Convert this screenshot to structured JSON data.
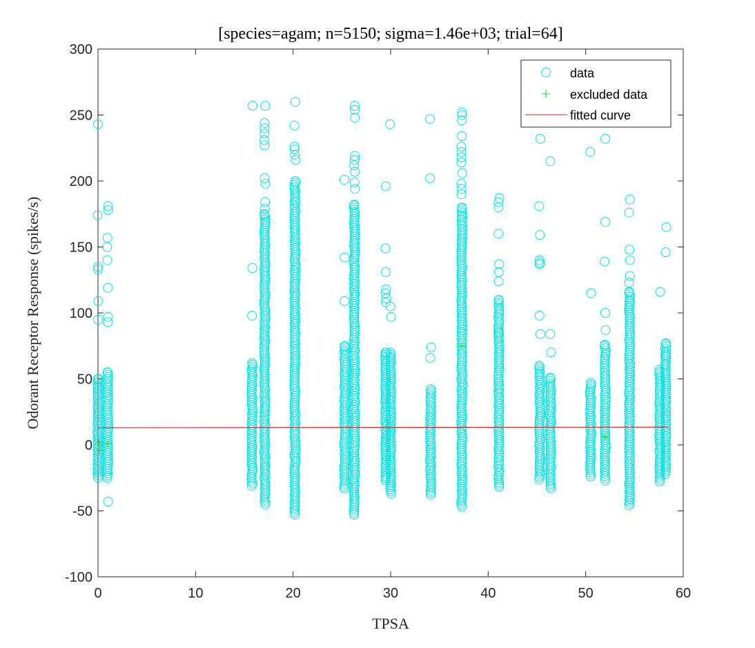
{
  "chart_data": {
    "type": "scatter",
    "title": "[species=agam; n=5150; sigma=1.46e+03; trial=64]",
    "xlabel": "TPSA",
    "ylabel": "Odorant Receptor Response (spikes/s)",
    "xlim": [
      0,
      60
    ],
    "ylim": [
      -100,
      300
    ],
    "xticks": [
      0,
      10,
      20,
      30,
      40,
      50,
      60
    ],
    "yticks": [
      -100,
      -50,
      0,
      50,
      100,
      150,
      200,
      250,
      300
    ],
    "grid": false,
    "legend_position": "top-right",
    "legend": [
      "data",
      "excluded data",
      "fitted curve"
    ],
    "colors": {
      "data": "#00e5e5",
      "excluded": "#22cc22",
      "fit": "#e02020",
      "axis": "#262626"
    },
    "columns": [
      {
        "x": 0.0,
        "ymin": -25,
        "ymax": 50,
        "outliers": [
          243,
          174,
          135,
          133,
          109,
          95
        ]
      },
      {
        "x": 1.0,
        "ymin": -25,
        "ymax": 55,
        "outliers": [
          181,
          178,
          157,
          150,
          140,
          119,
          97,
          93,
          -43
        ]
      },
      {
        "x": 15.8,
        "ymin": -31,
        "ymax": 62,
        "outliers": [
          257,
          134,
          98
        ]
      },
      {
        "x": 17.1,
        "ymin": -45,
        "ymax": 175,
        "outliers": [
          257,
          244,
          240,
          236,
          231,
          227,
          202,
          198,
          184,
          179
        ]
      },
      {
        "x": 20.2,
        "ymin": -53,
        "ymax": 200,
        "outliers": [
          260,
          242,
          226,
          224,
          220,
          216
        ]
      },
      {
        "x": 25.3,
        "ymin": -33,
        "ymax": 75,
        "outliers": [
          201,
          142,
          109
        ]
      },
      {
        "x": 26.3,
        "ymin": -53,
        "ymax": 182,
        "outliers": [
          257,
          254,
          248,
          219,
          216,
          212,
          207,
          199,
          194
        ]
      },
      {
        "x": 29.5,
        "ymin": -27,
        "ymax": 70,
        "outliers": [
          196,
          149,
          131,
          118,
          115,
          111,
          108
        ]
      },
      {
        "x": 30.0,
        "ymin": -37,
        "ymax": 70,
        "outliers": [
          243,
          105,
          97
        ]
      },
      {
        "x": 34.1,
        "ymin": -38,
        "ymax": 42,
        "outliers": [
          247,
          202,
          74,
          66
        ]
      },
      {
        "x": 37.3,
        "ymin": -47,
        "ymax": 180,
        "outliers": [
          252,
          250,
          246,
          234,
          226,
          222,
          218,
          214,
          206,
          198,
          194,
          190
        ]
      },
      {
        "x": 41.1,
        "ymin": -32,
        "ymax": 110,
        "outliers": [
          187,
          184,
          180,
          160,
          137,
          131,
          124,
          85,
          82
        ]
      },
      {
        "x": 45.3,
        "ymin": -26,
        "ymax": 60,
        "outliers": [
          232,
          181,
          159,
          140,
          138,
          137,
          98,
          84
        ]
      },
      {
        "x": 46.4,
        "ymin": -33,
        "ymax": 51,
        "outliers": [
          215,
          84,
          70
        ]
      },
      {
        "x": 50.5,
        "ymin": -24,
        "ymax": 47,
        "outliers": [
          222,
          115
        ]
      },
      {
        "x": 52.0,
        "ymin": -27,
        "ymax": 76,
        "outliers": [
          232,
          169,
          139,
          100,
          87
        ]
      },
      {
        "x": 54.5,
        "ymin": -46,
        "ymax": 116,
        "outliers": [
          186,
          176,
          148,
          140,
          128,
          123
        ]
      },
      {
        "x": 57.6,
        "ymin": -28,
        "ymax": 57,
        "outliers": [
          116
        ]
      },
      {
        "x": 58.2,
        "ymin": -22,
        "ymax": 77,
        "outliers": [
          165,
          146,
          68,
          61
        ]
      }
    ],
    "excluded_points": [
      {
        "x": 0.1,
        "y": 2
      },
      {
        "x": 0.2,
        "y": -4
      },
      {
        "x": 1.0,
        "y": 1
      },
      {
        "x": 37.3,
        "y": 75
      },
      {
        "x": 52.0,
        "y": 6
      }
    ],
    "fitted_curve": {
      "x": [
        0,
        58.5
      ],
      "y": [
        13,
        13.5
      ]
    }
  }
}
